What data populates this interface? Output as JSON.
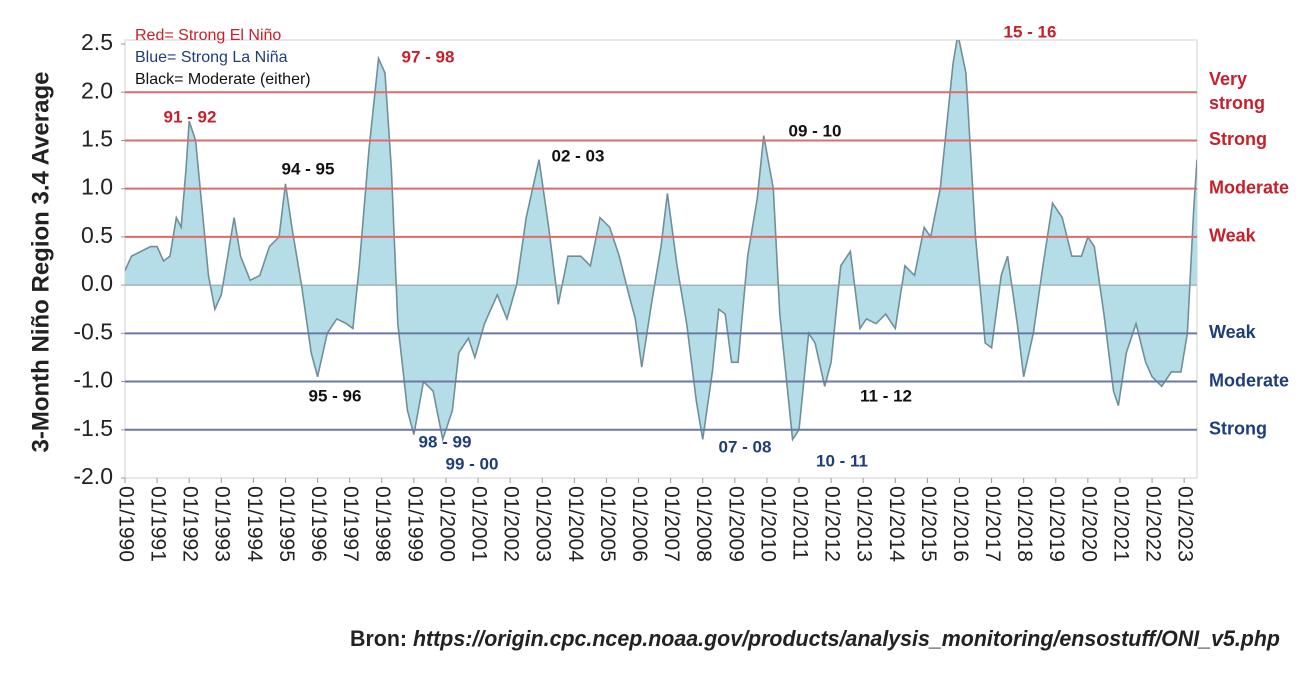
{
  "chart_data": {
    "type": "area",
    "y_label": "3-Month Niño Region 3.4 Average",
    "legend_lines": [
      {
        "text": "Red= Strong El Niño",
        "color": "#c8202a"
      },
      {
        "text": "Blue= Strong La Niña",
        "color": "#1f3e78"
      },
      {
        "text": "Black= Moderate (either)",
        "color": "#111111"
      }
    ],
    "source_prefix": "Bron:",
    "source_url": "https://origin.cpc.ncep.noaa.gov/products/analysis_monitoring/ensostuff/ONI_v5.php",
    "color": "#b5dde8",
    "line_color": "#6f9099",
    "x": [
      1990.0,
      1990.2,
      1990.5,
      1990.8,
      1991.0,
      1991.2,
      1991.4,
      1991.6,
      1991.75,
      1991.9,
      1992.0,
      1992.2,
      1992.4,
      1992.6,
      1992.8,
      1993.0,
      1993.3,
      1993.4,
      1993.6,
      1993.9,
      1994.2,
      1994.5,
      1994.8,
      1995.0,
      1995.2,
      1995.5,
      1995.8,
      1996.0,
      1996.3,
      1996.6,
      1996.9,
      1997.1,
      1997.3,
      1997.6,
      1997.9,
      1998.1,
      1998.3,
      1998.5,
      1998.8,
      1999.0,
      1999.3,
      1999.6,
      1999.9,
      2000.2,
      2000.4,
      2000.7,
      2000.9,
      2001.2,
      2001.6,
      2001.9,
      2002.2,
      2002.5,
      2002.9,
      2003.2,
      2003.5,
      2003.8,
      2004.2,
      2004.5,
      2004.8,
      2005.1,
      2005.4,
      2005.7,
      2005.9,
      2006.1,
      2006.4,
      2006.7,
      2006.9,
      2007.2,
      2007.5,
      2007.8,
      2008.0,
      2008.3,
      2008.5,
      2008.7,
      2008.9,
      2009.1,
      2009.4,
      2009.7,
      2009.9,
      2010.2,
      2010.4,
      2010.8,
      2011.0,
      2011.3,
      2011.5,
      2011.8,
      2012.0,
      2012.3,
      2012.6,
      2012.9,
      2013.1,
      2013.4,
      2013.7,
      2014.0,
      2014.3,
      2014.6,
      2014.9,
      2015.1,
      2015.4,
      2015.8,
      2015.95,
      2016.2,
      2016.5,
      2016.8,
      2017.0,
      2017.3,
      2017.5,
      2017.8,
      2018.0,
      2018.3,
      2018.6,
      2018.9,
      2019.2,
      2019.5,
      2019.8,
      2020.0,
      2020.2,
      2020.5,
      2020.8,
      2020.95,
      2021.2,
      2021.5,
      2021.8,
      2022.0,
      2022.3,
      2022.6,
      2022.9,
      2023.1,
      2023.3,
      2023.4
    ],
    "values": [
      0.15,
      0.3,
      0.35,
      0.4,
      0.4,
      0.25,
      0.3,
      0.7,
      0.6,
      1.2,
      1.7,
      1.5,
      0.8,
      0.1,
      -0.25,
      -0.1,
      0.5,
      0.7,
      0.3,
      0.05,
      0.1,
      0.4,
      0.5,
      1.05,
      0.6,
      0.0,
      -0.7,
      -0.95,
      -0.5,
      -0.35,
      -0.4,
      -0.45,
      0.2,
      1.4,
      2.35,
      2.2,
      1.2,
      -0.4,
      -1.3,
      -1.55,
      -1.0,
      -1.1,
      -1.6,
      -1.3,
      -0.7,
      -0.55,
      -0.75,
      -0.4,
      -0.1,
      -0.35,
      0.0,
      0.7,
      1.3,
      0.6,
      -0.2,
      0.3,
      0.3,
      0.2,
      0.7,
      0.6,
      0.3,
      -0.1,
      -0.35,
      -0.85,
      -0.2,
      0.4,
      0.95,
      0.2,
      -0.4,
      -1.2,
      -1.6,
      -0.9,
      -0.25,
      -0.3,
      -0.8,
      -0.8,
      0.3,
      0.9,
      1.55,
      1.0,
      -0.3,
      -1.6,
      -1.5,
      -0.5,
      -0.6,
      -1.05,
      -0.8,
      0.2,
      0.35,
      -0.45,
      -0.35,
      -0.4,
      -0.3,
      -0.45,
      0.2,
      0.1,
      0.6,
      0.5,
      1.0,
      2.3,
      2.6,
      2.2,
      0.5,
      -0.6,
      -0.65,
      0.1,
      0.3,
      -0.4,
      -0.95,
      -0.5,
      0.2,
      0.85,
      0.7,
      0.3,
      0.3,
      0.5,
      0.4,
      -0.3,
      -1.1,
      -1.25,
      -0.7,
      -0.4,
      -0.8,
      -0.95,
      -1.05,
      -0.9,
      -0.9,
      -0.5,
      0.8,
      1.3
    ],
    "xlim": [
      1990,
      2023.4
    ],
    "ylim": [
      -2.0,
      2.5
    ],
    "yticks": [
      {
        "value": -2.0,
        "label": "-2.0"
      },
      {
        "value": -1.5,
        "label": "-1.5"
      },
      {
        "value": -1.0,
        "label": "-1.0"
      },
      {
        "value": -0.5,
        "label": "-0.5"
      },
      {
        "value": 0,
        "label": "0.0"
      },
      {
        "value": 0.5,
        "label": "0.5"
      },
      {
        "value": 1.0,
        "label": "1.0"
      },
      {
        "value": 1.5,
        "label": "1.5"
      },
      {
        "value": 2.0,
        "label": "2.0"
      },
      {
        "value": 2.5,
        "label": "2.5"
      }
    ],
    "xticks": [
      {
        "value": 1990,
        "label": "01/1990"
      },
      {
        "value": 1991,
        "label": "01/1991"
      },
      {
        "value": 1992,
        "label": "01/1992"
      },
      {
        "value": 1993,
        "label": "01/1993"
      },
      {
        "value": 1994,
        "label": "01/1994"
      },
      {
        "value": 1995,
        "label": "01/1995"
      },
      {
        "value": 1996,
        "label": "01/1996"
      },
      {
        "value": 1997,
        "label": "01/1997"
      },
      {
        "value": 1998,
        "label": "01/1998"
      },
      {
        "value": 1999,
        "label": "01/1999"
      },
      {
        "value": 2000,
        "label": "01/2000"
      },
      {
        "value": 2001,
        "label": "01/2001"
      },
      {
        "value": 2002,
        "label": "01/2002"
      },
      {
        "value": 2003,
        "label": "01/2003"
      },
      {
        "value": 2004,
        "label": "01/2004"
      },
      {
        "value": 2005,
        "label": "01/2005"
      },
      {
        "value": 2006,
        "label": "01/2006"
      },
      {
        "value": 2007,
        "label": "01/2007"
      },
      {
        "value": 2008,
        "label": "01/2008"
      },
      {
        "value": 2009,
        "label": "01/2009"
      },
      {
        "value": 2010,
        "label": "01/2010"
      },
      {
        "value": 2011,
        "label": "01/2011"
      },
      {
        "value": 2012,
        "label": "01/2012"
      },
      {
        "value": 2013,
        "label": "01/2013"
      },
      {
        "value": 2014,
        "label": "01/2014"
      },
      {
        "value": 2015,
        "label": "01/2015"
      },
      {
        "value": 2016,
        "label": "01/2016"
      },
      {
        "value": 2017,
        "label": "01/2017"
      },
      {
        "value": 2018,
        "label": "01/2018"
      },
      {
        "value": 2019,
        "label": "01/2019"
      },
      {
        "value": 2020,
        "label": "01/2020"
      },
      {
        "value": 2021,
        "label": "01/2021"
      },
      {
        "value": 2022,
        "label": "01/2022"
      },
      {
        "value": 2023,
        "label": "01/2023"
      }
    ],
    "thresholds": [
      {
        "value": 2.0,
        "label": [
          "Very",
          "strong"
        ],
        "color": "#e06a6a",
        "label_color": "#c8202a"
      },
      {
        "value": 1.5,
        "label": [
          "Strong"
        ],
        "color": "#e06a6a",
        "label_color": "#c8202a"
      },
      {
        "value": 1.0,
        "label": [
          "Moderate"
        ],
        "color": "#e06a6a",
        "label_color": "#c8202a"
      },
      {
        "value": 0.5,
        "label": [
          "Weak"
        ],
        "color": "#e06a6a",
        "label_color": "#c8202a"
      },
      {
        "value": -0.5,
        "label": [
          "Weak"
        ],
        "color": "#6a78a8",
        "label_color": "#1f3e78"
      },
      {
        "value": -1.0,
        "label": [
          "Moderate"
        ],
        "color": "#6a78a8",
        "label_color": "#1f3e78"
      },
      {
        "value": -1.5,
        "label": [
          "Strong"
        ],
        "color": "#6a78a8",
        "label_color": "#1f3e78"
      }
    ],
    "annotations": [
      {
        "text": "91 - 92",
        "color": "#c8202a"
      },
      {
        "text": "94 - 95",
        "color": "#111111"
      },
      {
        "text": "97 - 98",
        "color": "#c8202a"
      },
      {
        "text": "95 - 96",
        "color": "#111111"
      },
      {
        "text": "98 - 99",
        "color": "#1f3e78"
      },
      {
        "text": "99 - 00",
        "color": "#1f3e78"
      },
      {
        "text": "02 - 03",
        "color": "#111111"
      },
      {
        "text": "07 - 08",
        "color": "#1f3e78"
      },
      {
        "text": "09 - 10",
        "color": "#111111"
      },
      {
        "text": "10 - 11",
        "color": "#1f3e78"
      },
      {
        "text": "11 - 12",
        "color": "#111111"
      },
      {
        "text": "15 - 16",
        "color": "#c8202a"
      }
    ]
  }
}
